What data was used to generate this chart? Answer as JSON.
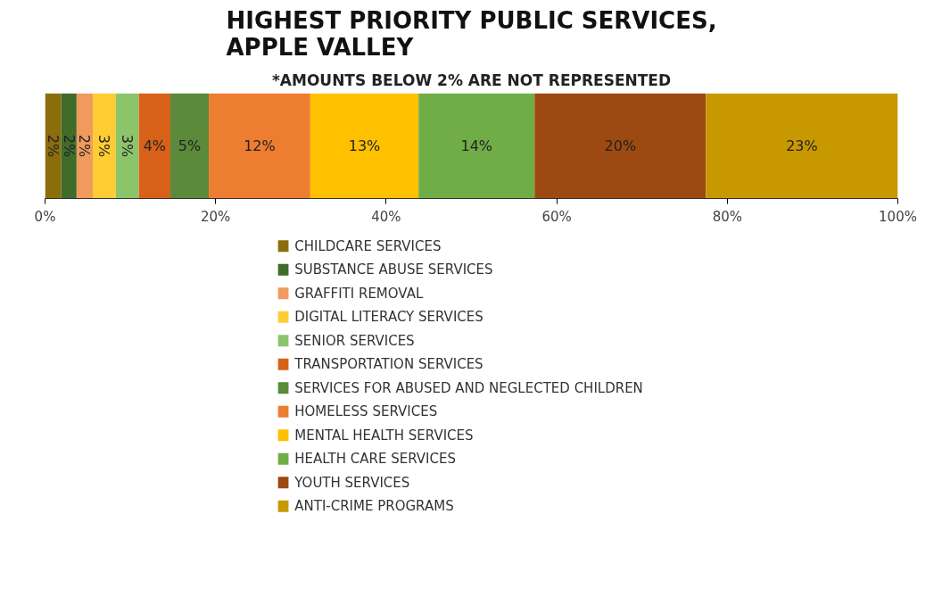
{
  "chart_data": {
    "type": "bar",
    "orientation": "horizontal",
    "stacked": true,
    "title": "HIGHEST PRIORITY PUBLIC SERVICES,\nAPPLE VALLEY",
    "subtitle": "*AMOUNTS BELOW 2% ARE NOT REPRESENTED",
    "categories": [
      null
    ],
    "xlim": [
      0,
      100
    ],
    "xticks": [
      {
        "value": 0,
        "label": "0%"
      },
      {
        "value": 20,
        "label": "20%"
      },
      {
        "value": 40,
        "label": "40%"
      },
      {
        "value": 60,
        "label": "60%"
      },
      {
        "value": 80,
        "label": "80%"
      },
      {
        "value": 100,
        "label": "100%"
      }
    ],
    "grid": false,
    "legend": "bottom",
    "series": [
      {
        "name": "CHILDCARE SERVICES",
        "color": "#8c6d0c",
        "values": [
          1.9
        ],
        "value_labels": [
          "2%"
        ]
      },
      {
        "name": "SUBSTANCE ABUSE SERVICES",
        "color": "#3f6b2b",
        "values": [
          1.8
        ],
        "value_labels": [
          "2%"
        ]
      },
      {
        "name": "GRAFFITI REMOVAL",
        "color": "#f09a5e",
        "values": [
          1.9
        ],
        "value_labels": [
          "2%"
        ]
      },
      {
        "name": "DIGITAL LITERACY SERVICES",
        "color": "#ffcc33",
        "values": [
          2.7
        ],
        "value_labels": [
          "3%"
        ]
      },
      {
        "name": "SENIOR SERVICES",
        "color": "#8cc46b",
        "values": [
          2.7
        ],
        "value_labels": [
          "3%"
        ]
      },
      {
        "name": "TRANSPORTATION SERVICES",
        "color": "#d8611a",
        "values": [
          3.7
        ],
        "value_labels": [
          "4%"
        ]
      },
      {
        "name": "SERVICES FOR ABUSED AND NEGLECTED CHILDREN",
        "color": "#5a8a3a",
        "values": [
          4.5
        ],
        "value_labels": [
          "5%"
        ]
      },
      {
        "name": "HOMELESS SERVICES",
        "color": "#ed7d31",
        "values": [
          11.9
        ],
        "value_labels": [
          "12%"
        ]
      },
      {
        "name": "MENTAL HEALTH SERVICES",
        "color": "#ffc000",
        "values": [
          12.7
        ],
        "value_labels": [
          "13%"
        ]
      },
      {
        "name": "HEALTH CARE SERVICES",
        "color": "#70ad47",
        "values": [
          13.6
        ],
        "value_labels": [
          "14%"
        ]
      },
      {
        "name": "YOUTH SERVICES",
        "color": "#9c4a12",
        "values": [
          20.1
        ],
        "value_labels": [
          "20%"
        ]
      },
      {
        "name": "ANTI-CRIME PROGRAMS",
        "color": "#c89800",
        "values": [
          22.5
        ],
        "value_labels": [
          "23%"
        ]
      }
    ]
  }
}
